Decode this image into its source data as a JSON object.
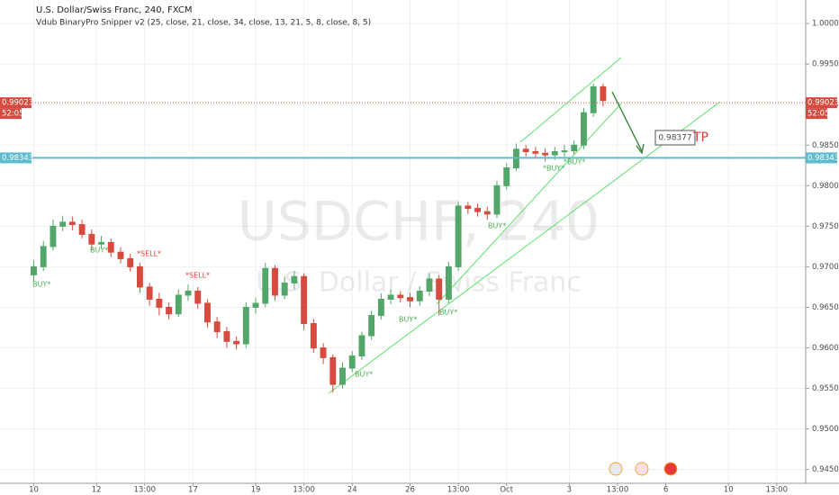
{
  "chart_data": {
    "type": "candlestick",
    "title": "U.S. Dollar/Swiss Franc, 240, FXCM",
    "subtitle": "Vdub BinaryPro Snipper v2 (25, close, 21, close, 34, close, 13, 21, 5, 8, close, 8, 5)",
    "watermark": "USDCHF, 240",
    "watermark_subtitle": "U.S. Dollar / Swiss Franc",
    "up_color": "#53a669",
    "down_color": "#d64a3f",
    "grid": true,
    "xlim": [
      0,
      167
    ],
    "ylim": [
      0.9433,
      1.0029
    ],
    "xticks": [
      {
        "value": 7,
        "label": "10"
      },
      {
        "value": 20,
        "label": "12"
      },
      {
        "value": 30,
        "label": "13:00"
      },
      {
        "value": 40,
        "label": "17"
      },
      {
        "value": 53,
        "label": "19"
      },
      {
        "value": 63,
        "label": "13:00"
      },
      {
        "value": 73,
        "label": "24"
      },
      {
        "value": 85,
        "label": "26"
      },
      {
        "value": 95,
        "label": "13:00"
      },
      {
        "value": 105,
        "label": "Oct"
      },
      {
        "value": 118,
        "label": "3"
      },
      {
        "value": 128,
        "label": "13:00"
      },
      {
        "value": 138,
        "label": "6"
      },
      {
        "value": 151,
        "label": "10"
      },
      {
        "value": 161,
        "label": "13:00"
      }
    ],
    "yticks": [
      {
        "value": 0.945,
        "label": "0.94500"
      },
      {
        "value": 0.95,
        "label": "0.95000"
      },
      {
        "value": 0.955,
        "label": "0.95500"
      },
      {
        "value": 0.96,
        "label": "0.96000"
      },
      {
        "value": 0.965,
        "label": "0.96500"
      },
      {
        "value": 0.97,
        "label": "0.97000"
      },
      {
        "value": 0.975,
        "label": "0.97500"
      },
      {
        "value": 0.98,
        "label": "0.98000"
      },
      {
        "value": 0.985,
        "label": "0.98500"
      },
      {
        "value": 0.99,
        "label": "0.99000"
      },
      {
        "value": 0.995,
        "label": "0.99500"
      },
      {
        "value": 1.0,
        "label": "1.00000"
      }
    ],
    "last_price": {
      "value": 0.99023,
      "label": "0.99023"
    },
    "countdown": "52:05",
    "hline": {
      "value": 0.98343,
      "label": "0.98343",
      "color": "#5bbcd0"
    },
    "target_note": "0.98377",
    "target_text": "TP",
    "signals": [
      "BUY*",
      "BUY*",
      "*SELL*",
      "*SELL*",
      "BUY*",
      "BUY*",
      "BUY*",
      "BUY*",
      "*BUY*",
      "*BUY*"
    ],
    "x": [
      7,
      9,
      11,
      13,
      15,
      17,
      19,
      21,
      23,
      25,
      27,
      29,
      31,
      33,
      35,
      37,
      39,
      41,
      43,
      45,
      47,
      49,
      51,
      53,
      55,
      57,
      59,
      61,
      63,
      65,
      67,
      69,
      71,
      73,
      75,
      77,
      79,
      81,
      83,
      85,
      87,
      89,
      91,
      93,
      95,
      97,
      99,
      101,
      103,
      105,
      107,
      109,
      111,
      113,
      115,
      117,
      119,
      121,
      123,
      125
    ],
    "open": [
      0.969,
      0.97,
      0.9725,
      0.975,
      0.9755,
      0.9752,
      0.974,
      0.9728,
      0.973,
      0.9718,
      0.971,
      0.97,
      0.9675,
      0.966,
      0.965,
      0.9642,
      0.9665,
      0.967,
      0.9655,
      0.9632,
      0.962,
      0.9608,
      0.9605,
      0.965,
      0.9655,
      0.9698,
      0.9665,
      0.968,
      0.9688,
      0.963,
      0.96,
      0.9588,
      0.9555,
      0.9575,
      0.959,
      0.9615,
      0.964,
      0.966,
      0.9665,
      0.9662,
      0.9658,
      0.967,
      0.9685,
      0.966,
      0.97,
      0.9775,
      0.9772,
      0.9768,
      0.9765,
      0.98,
      0.9822,
      0.9845,
      0.9842,
      0.984,
      0.9838,
      0.9842,
      0.9843,
      0.985,
      0.989,
      0.9922
    ],
    "high": [
      0.9708,
      0.9732,
      0.9758,
      0.9763,
      0.9762,
      0.9758,
      0.9746,
      0.9738,
      0.9735,
      0.9724,
      0.9716,
      0.9705,
      0.968,
      0.9668,
      0.9656,
      0.9672,
      0.9678,
      0.9675,
      0.966,
      0.9638,
      0.9626,
      0.9614,
      0.9656,
      0.9662,
      0.9705,
      0.9702,
      0.9688,
      0.9695,
      0.9692,
      0.9636,
      0.9606,
      0.9592,
      0.9582,
      0.9596,
      0.962,
      0.9646,
      0.9667,
      0.9672,
      0.967,
      0.9668,
      0.9676,
      0.9692,
      0.969,
      0.9706,
      0.978,
      0.978,
      0.9778,
      0.9774,
      0.9806,
      0.9828,
      0.9852,
      0.985,
      0.9848,
      0.9846,
      0.9848,
      0.985,
      0.9856,
      0.9896,
      0.9926,
      0.9926
    ],
    "low": [
      0.9682,
      0.9695,
      0.972,
      0.9744,
      0.9745,
      0.9735,
      0.972,
      0.9722,
      0.9712,
      0.9704,
      0.9694,
      0.9668,
      0.9652,
      0.964,
      0.9635,
      0.9638,
      0.9658,
      0.9648,
      0.9625,
      0.9612,
      0.96,
      0.9598,
      0.96,
      0.9642,
      0.965,
      0.9658,
      0.966,
      0.9672,
      0.9622,
      0.9594,
      0.958,
      0.9545,
      0.955,
      0.957,
      0.9585,
      0.961,
      0.9635,
      0.9654,
      0.9656,
      0.965,
      0.9652,
      0.9664,
      0.964,
      0.9655,
      0.9695,
      0.9765,
      0.9762,
      0.9758,
      0.976,
      0.9795,
      0.9818,
      0.9836,
      0.9834,
      0.983,
      0.9832,
      0.9836,
      0.9838,
      0.9845,
      0.9885,
      0.9898
    ],
    "close": [
      0.97,
      0.9725,
      0.975,
      0.9755,
      0.9752,
      0.974,
      0.9728,
      0.973,
      0.9718,
      0.971,
      0.97,
      0.9675,
      0.966,
      0.965,
      0.9642,
      0.9665,
      0.967,
      0.9655,
      0.9632,
      0.962,
      0.9608,
      0.9605,
      0.965,
      0.9655,
      0.9698,
      0.9665,
      0.968,
      0.9688,
      0.963,
      0.96,
      0.9588,
      0.9555,
      0.9575,
      0.959,
      0.9615,
      0.964,
      0.966,
      0.9665,
      0.9662,
      0.9658,
      0.967,
      0.9685,
      0.966,
      0.97,
      0.9775,
      0.9772,
      0.9768,
      0.9765,
      0.98,
      0.9822,
      0.9845,
      0.9842,
      0.984,
      0.9838,
      0.9842,
      0.9843,
      0.985,
      0.989,
      0.9922,
      0.9905
    ]
  }
}
